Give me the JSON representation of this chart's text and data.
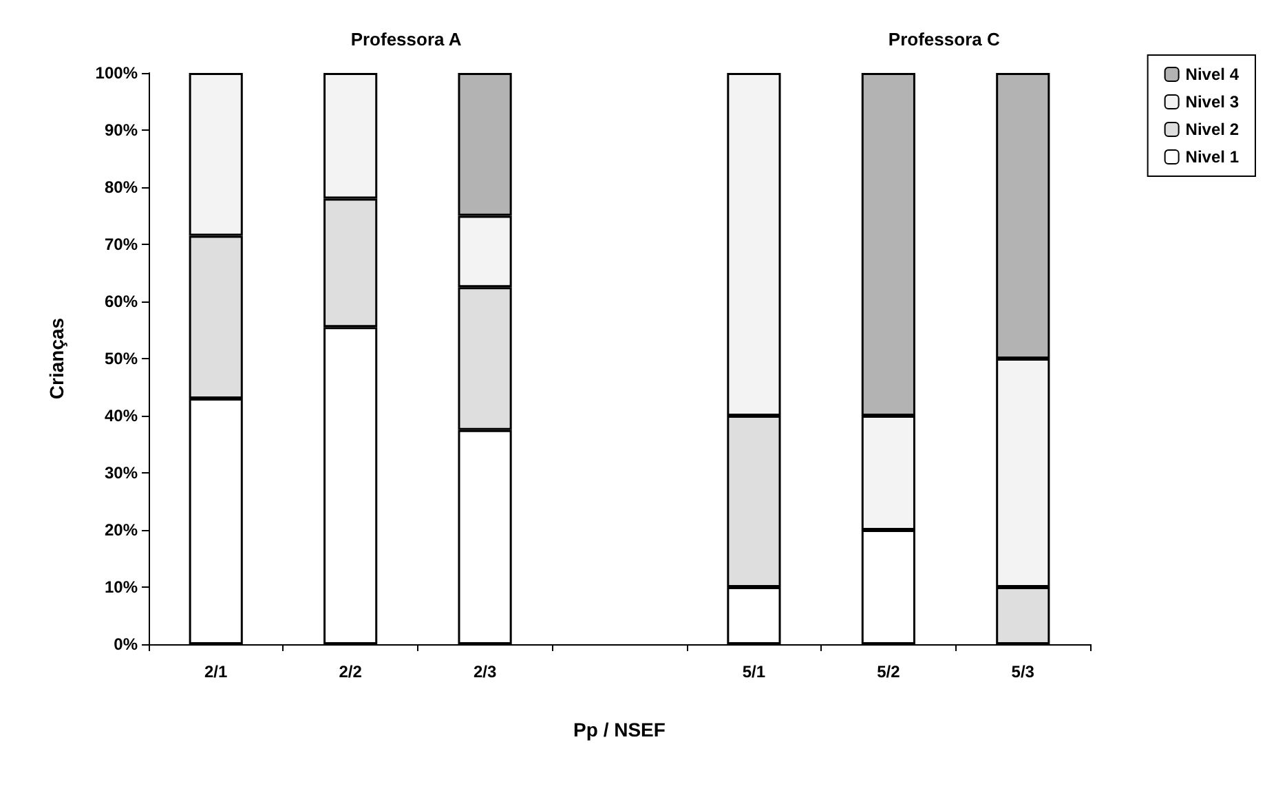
{
  "chart_data": {
    "type": "bar",
    "stacked": true,
    "xlabel": "Pp / NSEF",
    "ylabel": "Crianças",
    "categories": [
      "2/1",
      "2/2",
      "2/3",
      null,
      "5/1",
      "5/2",
      "5/3"
    ],
    "series": [
      {
        "name": "Nivel 1",
        "color": "#ffffff",
        "values": [
          43,
          55.5,
          37.5,
          null,
          10,
          20,
          0
        ]
      },
      {
        "name": "Nivel 2",
        "color": "#dedede",
        "values": [
          28.5,
          22.5,
          25,
          null,
          30,
          0,
          10
        ]
      },
      {
        "name": "Nivel 3",
        "color": "#f3f3f3",
        "values": [
          28.5,
          22,
          12.5,
          null,
          60,
          20,
          40
        ]
      },
      {
        "name": "Nivel 4",
        "color": "#b3b3b3",
        "values": [
          0,
          0,
          25,
          null,
          0,
          60,
          50
        ]
      }
    ],
    "ylim": [
      0,
      100
    ],
    "yticks": [
      {
        "value": 0,
        "label": "0%"
      },
      {
        "value": 10,
        "label": "10%"
      },
      {
        "value": 20,
        "label": "20%"
      },
      {
        "value": 30,
        "label": "30%"
      },
      {
        "value": 40,
        "label": "40%"
      },
      {
        "value": 50,
        "label": "50%"
      },
      {
        "value": 60,
        "label": "60%"
      },
      {
        "value": 70,
        "label": "70%"
      },
      {
        "value": 80,
        "label": "80%"
      },
      {
        "value": 90,
        "label": "90%"
      },
      {
        "value": 100,
        "label": "100%"
      }
    ],
    "annotations": [
      "Professora A",
      "Professora C"
    ],
    "legend": "top right",
    "grid": false
  }
}
